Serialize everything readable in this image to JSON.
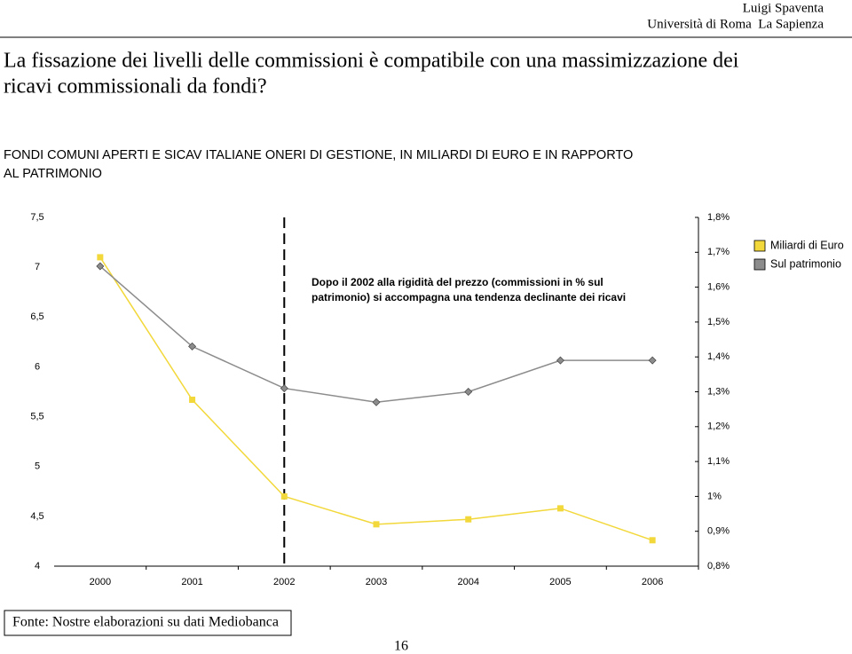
{
  "header": {
    "author": "Luigi Spaventa",
    "affiliation": "Università di Roma  La Sapienza",
    "title_lines": [
      "La fissazione dei livelli delle commissioni è compatibile con una massimizzazione dei",
      "ricavi commissionali da fondi?"
    ]
  },
  "chart_data": {
    "type": "line",
    "title_lines": [
      "FONDI COMUNI APERTI E SICAV ITALIANE  ONERI DI GESTIONE, IN MILIARDI DI EURO E IN RAPPORTO",
      "AL PATRIMONIO"
    ],
    "annotation_lines": [
      "Dopo il 2002 alla rigidità del prezzo (commissioni in % sul",
      "patrimonio) si accompagna una tendenza declinante dei ricavi"
    ],
    "categories": [
      "2000",
      "2001",
      "2002",
      "2003",
      "2004",
      "2005",
      "2006"
    ],
    "vline": "2002",
    "series": [
      {
        "name": "Miliardi di Euro",
        "color": "#f2d83a",
        "marker_color": "#f2d83a",
        "marker": "square",
        "values": [
          7.1,
          5.67,
          4.7,
          4.42,
          4.47,
          4.58,
          4.26
        ]
      },
      {
        "name": "Sul patrimonio",
        "color": "#8c8c8c",
        "marker_color": "#8c8c8c",
        "marker": "diamond",
        "axis": "y2",
        "values": [
          1.66,
          1.43,
          1.31,
          1.27,
          1.3,
          1.39,
          1.39
        ]
      }
    ],
    "ylim": [
      4,
      7.5
    ],
    "yticks": [
      4,
      {
        "value": 4.5,
        "label": "4,5"
      },
      5,
      {
        "value": 5.5,
        "label": "5,5"
      },
      6,
      {
        "value": 6.5,
        "label": "6,5"
      },
      7,
      {
        "value": 7.5,
        "label": "7,5"
      }
    ],
    "y2lim": [
      0.8,
      1.8
    ],
    "y2ticks": [
      {
        "value": 0.8,
        "label": "0,8%"
      },
      {
        "value": 0.9,
        "label": "0,9%"
      },
      {
        "value": 1,
        "label": "1%"
      },
      {
        "value": 1.1,
        "label": "1,1%"
      },
      {
        "value": 1.2,
        "label": "1,2%"
      },
      {
        "value": 1.3,
        "label": "1,3%"
      },
      {
        "value": 1.4,
        "label": "1,4%"
      },
      {
        "value": 1.5,
        "label": "1,5%"
      },
      {
        "value": 1.6,
        "label": "1,6%"
      },
      {
        "value": 1.7,
        "label": "1,7%"
      },
      {
        "value": 1.8,
        "label": "1,8%"
      }
    ],
    "legend": "right"
  },
  "footer": {
    "source": "Fonte: Nostre elaborazioni su dati Mediobanca",
    "page": "16"
  }
}
